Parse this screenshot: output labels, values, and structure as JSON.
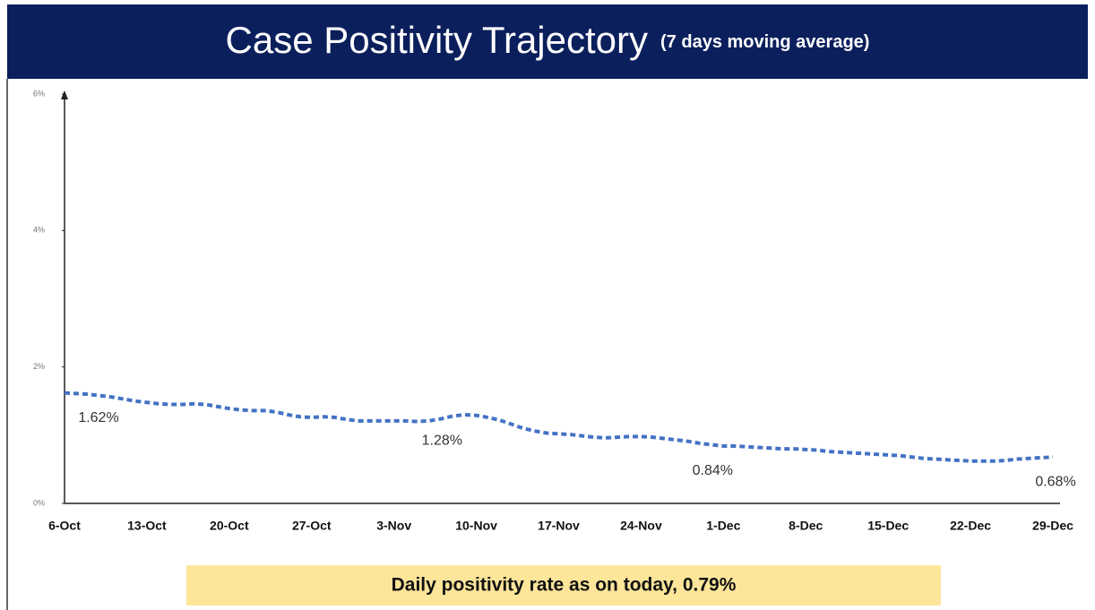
{
  "chart_data": {
    "type": "line",
    "title": "Case Positivity Trajectory",
    "subtitle": "(7 days moving average)",
    "note": "Daily positivity rate as on today, 0.79%",
    "categories": [
      "6-Oct",
      null,
      null,
      null,
      null,
      null,
      null,
      "13-Oct",
      null,
      null,
      null,
      null,
      null,
      null,
      "20-Oct",
      null,
      null,
      null,
      null,
      null,
      null,
      "27-Oct",
      null,
      null,
      null,
      null,
      null,
      null,
      "3-Nov",
      null,
      null,
      null,
      null,
      null,
      null,
      "10-Nov",
      null,
      null,
      null,
      null,
      null,
      null,
      "17-Nov",
      null,
      null,
      null,
      null,
      null,
      null,
      "24-Nov",
      null,
      null,
      null,
      null,
      null,
      null,
      "1-Dec",
      null,
      null,
      null,
      null,
      null,
      null,
      "8-Dec",
      null,
      null,
      null,
      null,
      null,
      null,
      "15-Dec",
      null,
      null,
      null,
      null,
      null,
      null,
      "22-Dec",
      null,
      null,
      null,
      null,
      null,
      null,
      "29-Dec"
    ],
    "series": [
      {
        "name": "Case Positivity",
        "color": "#4472c4",
        "values": [
          1.62,
          1.61,
          1.6,
          1.58,
          1.56,
          1.53,
          1.5,
          1.48,
          1.46,
          1.45,
          1.45,
          1.46,
          1.45,
          1.42,
          1.39,
          1.37,
          1.36,
          1.36,
          1.34,
          1.3,
          1.27,
          1.26,
          1.27,
          1.26,
          1.23,
          1.21,
          1.21,
          1.21,
          1.21,
          1.21,
          1.2,
          1.21,
          1.24,
          1.28,
          1.3,
          1.29,
          1.26,
          1.22,
          1.16,
          1.1,
          1.06,
          1.03,
          1.02,
          1.01,
          0.99,
          0.97,
          0.96,
          0.97,
          0.98,
          0.98,
          0.97,
          0.95,
          0.93,
          0.91,
          0.88,
          0.86,
          0.84,
          0.84,
          0.83,
          0.82,
          0.81,
          0.8,
          0.8,
          0.79,
          0.78,
          0.76,
          0.75,
          0.74,
          0.73,
          0.72,
          0.71,
          0.7,
          0.68,
          0.66,
          0.65,
          0.64,
          0.63,
          0.62,
          0.62,
          0.62,
          0.63,
          0.65,
          0.66,
          0.67,
          0.68
        ],
        "value_labels": [
          "1.62%",
          null,
          null,
          null,
          null,
          null,
          null,
          null,
          null,
          null,
          null,
          null,
          null,
          null,
          null,
          null,
          null,
          null,
          null,
          null,
          null,
          null,
          null,
          null,
          null,
          null,
          null,
          null,
          null,
          null,
          null,
          null,
          null,
          "1.28%",
          null,
          null,
          null,
          null,
          null,
          null,
          null,
          null,
          null,
          null,
          null,
          null,
          null,
          null,
          null,
          null,
          null,
          null,
          null,
          null,
          null,
          null,
          "0.84%",
          null,
          null,
          null,
          null,
          null,
          null,
          null,
          null,
          null,
          null,
          null,
          null,
          null,
          null,
          null,
          null,
          null,
          null,
          null,
          null,
          null,
          null,
          null,
          null,
          null,
          null,
          null,
          "0.68%"
        ]
      }
    ],
    "ylim": [
      0,
      6
    ],
    "yticks": [
      {
        "value": 0,
        "label": "0%"
      },
      {
        "value": 2,
        "label": "2%"
      },
      {
        "value": 4,
        "label": "4%"
      },
      {
        "value": 6,
        "label": "6%"
      }
    ],
    "grid": false
  }
}
